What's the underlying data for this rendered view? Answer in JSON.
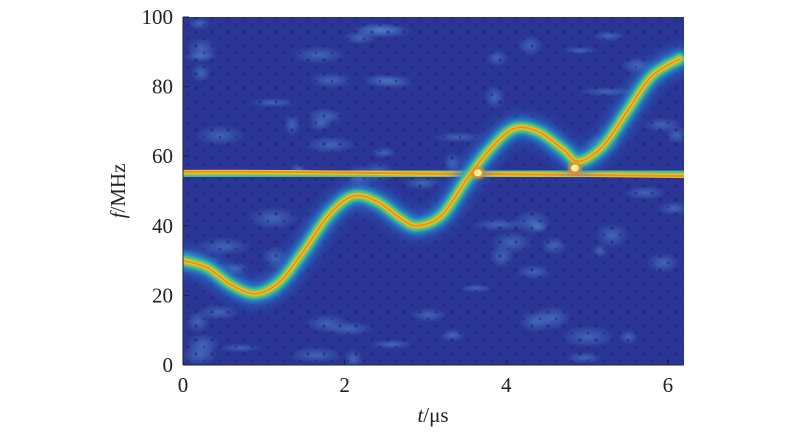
{
  "chart_data": {
    "type": "heatmap",
    "title": "",
    "xlabel": {
      "symbol": "t",
      "unit": "/μs"
    },
    "ylabel": {
      "symbol": "f",
      "unit": "/MHz"
    },
    "xlim": [
      0,
      6.2
    ],
    "ylim": [
      0,
      100
    ],
    "x_ticks": [
      "0",
      "2",
      "4",
      "6"
    ],
    "y_ticks": [
      "0",
      "20",
      "40",
      "60",
      "80",
      "100"
    ],
    "grid": false,
    "legend": "none",
    "colormap": [
      "#2b2f8e",
      "#2f4bc0",
      "#2f78d8",
      "#1fa3c9",
      "#3cbf8e",
      "#9fcd3f",
      "#f0c52a",
      "#f08a1c",
      "#f5f0a0"
    ],
    "series": [
      {
        "points": [
          [
            0.0,
            55.5
          ],
          [
            1.0,
            55.5
          ],
          [
            2.0,
            55.3
          ],
          [
            3.0,
            55.0
          ],
          [
            4.0,
            54.8
          ],
          [
            5.0,
            54.6
          ],
          [
            6.2,
            54.3
          ]
        ]
      },
      {
        "points": [
          [
            0.0,
            30
          ],
          [
            0.3,
            28
          ],
          [
            0.6,
            23
          ],
          [
            0.9,
            20.5
          ],
          [
            1.2,
            24
          ],
          [
            1.5,
            33
          ],
          [
            1.8,
            43
          ],
          [
            2.1,
            48.5
          ],
          [
            2.4,
            47
          ],
          [
            2.7,
            42
          ],
          [
            2.9,
            40
          ],
          [
            3.2,
            43
          ],
          [
            3.5,
            53
          ],
          [
            3.8,
            62
          ],
          [
            4.1,
            68
          ],
          [
            4.4,
            67
          ],
          [
            4.7,
            62
          ],
          [
            4.9,
            58.5
          ],
          [
            5.2,
            63
          ],
          [
            5.5,
            73
          ],
          [
            5.8,
            83
          ],
          [
            6.15,
            88
          ]
        ]
      }
    ]
  }
}
